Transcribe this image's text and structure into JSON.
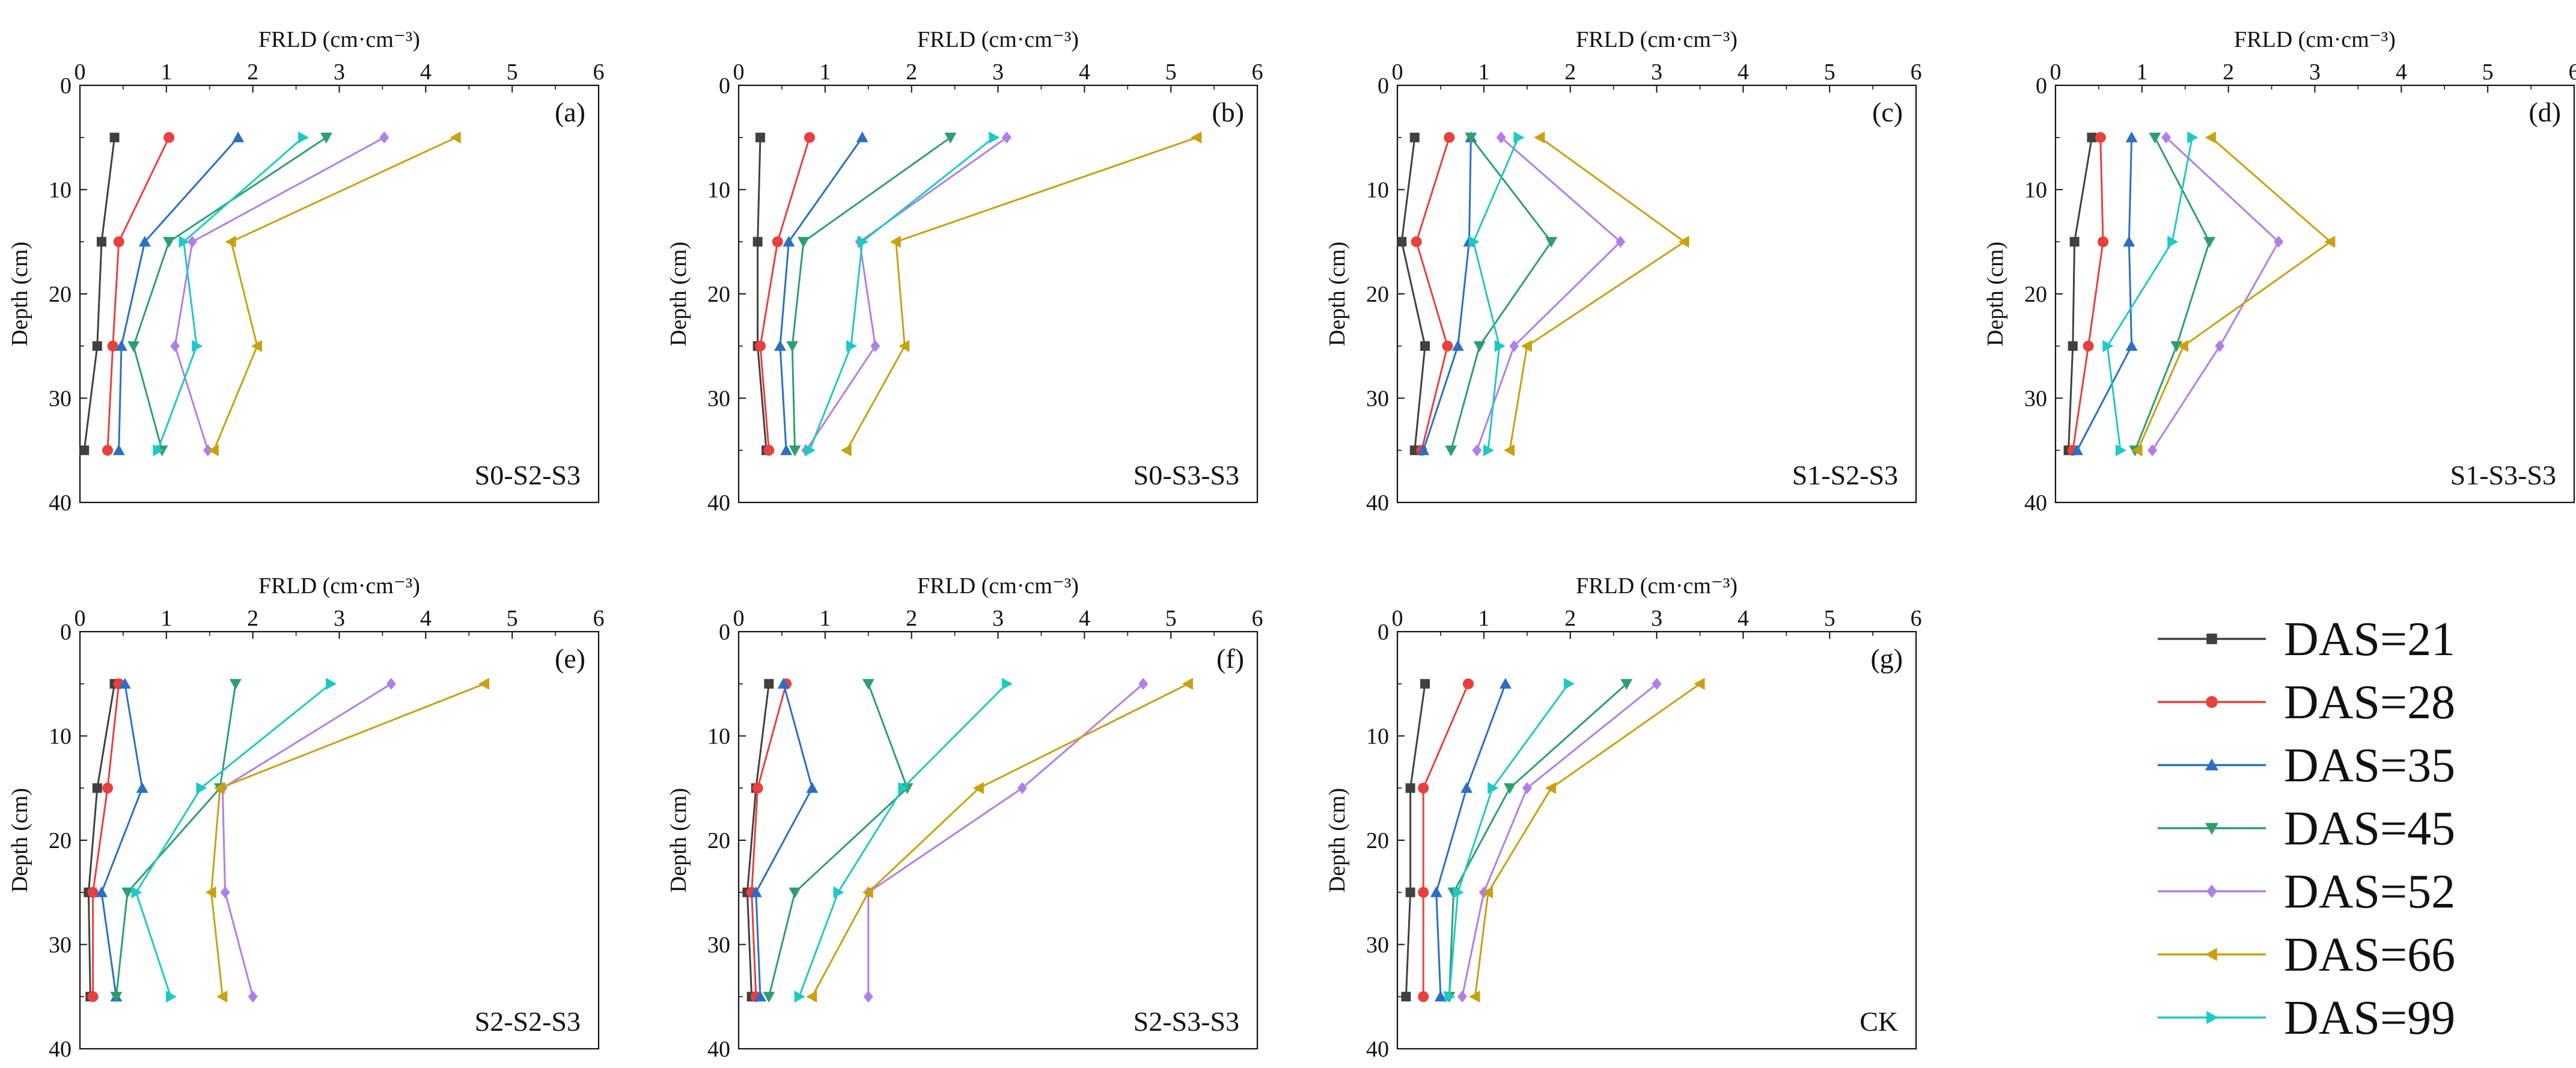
{
  "chart_data": {
    "type": "line",
    "orientation": "depth-profile",
    "xlabel": "FRLD (cm·cm⁻³)",
    "ylabel": "Depth (cm)",
    "xlim": [
      0,
      6
    ],
    "ylim": [
      0,
      40
    ],
    "xticks": [
      0,
      1,
      2,
      3,
      4,
      5,
      6
    ],
    "yticks": [
      0,
      10,
      20,
      30,
      40
    ],
    "depths": [
      5,
      15,
      25,
      35
    ],
    "series": [
      {
        "name": "DAS=21",
        "color": "#404040",
        "marker": "square"
      },
      {
        "name": "DAS=28",
        "color": "#e8403c",
        "marker": "circle"
      },
      {
        "name": "DAS=35",
        "color": "#2a6fc4",
        "marker": "triangle-up"
      },
      {
        "name": "DAS=45",
        "color": "#2e9e6e",
        "marker": "triangle-down"
      },
      {
        "name": "DAS=52",
        "color": "#b07ee8",
        "marker": "diamond"
      },
      {
        "name": "DAS=66",
        "color": "#c9a010",
        "marker": "triangle-left"
      },
      {
        "name": "DAS=99",
        "color": "#1ec9c4",
        "marker": "triangle-right"
      }
    ],
    "panels": [
      {
        "letter": "(a)",
        "treatment": "S0-S2-S3",
        "values": [
          [
            0.4,
            0.25,
            0.2,
            0.05
          ],
          [
            1.03,
            0.45,
            0.38,
            0.32
          ],
          [
            1.83,
            0.75,
            0.48,
            0.45
          ],
          [
            2.85,
            1.03,
            0.62,
            0.95
          ],
          [
            3.52,
            1.3,
            1.1,
            1.48
          ],
          [
            4.35,
            1.75,
            2.05,
            1.55
          ],
          [
            2.58,
            1.2,
            1.35,
            0.9
          ]
        ]
      },
      {
        "letter": "(b)",
        "treatment": "S0-S3-S3",
        "values": [
          [
            0.25,
            0.22,
            0.22,
            0.32
          ],
          [
            0.82,
            0.45,
            0.25,
            0.35
          ],
          [
            1.43,
            0.58,
            0.48,
            0.55
          ],
          [
            2.45,
            0.75,
            0.62,
            0.65
          ],
          [
            3.1,
            1.4,
            1.58,
            0.78
          ],
          [
            5.3,
            1.82,
            1.92,
            1.25
          ],
          [
            2.95,
            1.43,
            1.3,
            0.82
          ]
        ]
      },
      {
        "letter": "(c)",
        "treatment": "S1-S2-S3",
        "values": [
          [
            0.2,
            0.05,
            0.32,
            0.2
          ],
          [
            0.6,
            0.22,
            0.58,
            0.28
          ],
          [
            0.85,
            0.83,
            0.7,
            0.3
          ],
          [
            0.85,
            1.78,
            0.95,
            0.62
          ],
          [
            1.2,
            2.58,
            1.35,
            0.92
          ],
          [
            1.65,
            3.32,
            1.5,
            1.3
          ],
          [
            1.4,
            0.88,
            1.18,
            1.05
          ]
        ]
      },
      {
        "letter": "(d)",
        "treatment": "S1-S3-S3",
        "values": [
          [
            0.42,
            0.22,
            0.2,
            0.15
          ],
          [
            0.52,
            0.55,
            0.38,
            0.2
          ],
          [
            0.88,
            0.85,
            0.88,
            0.25
          ],
          [
            1.15,
            1.78,
            1.4,
            0.92
          ],
          [
            1.28,
            2.58,
            1.9,
            1.12
          ],
          [
            1.8,
            3.18,
            1.48,
            0.95
          ],
          [
            1.58,
            1.35,
            0.6,
            0.75
          ]
        ]
      },
      {
        "letter": "(e)",
        "treatment": "S2-S2-S3",
        "values": [
          [
            0.4,
            0.2,
            0.1,
            0.12
          ],
          [
            0.45,
            0.32,
            0.15,
            0.15
          ],
          [
            0.52,
            0.72,
            0.25,
            0.42
          ],
          [
            1.8,
            1.62,
            0.55,
            0.42
          ],
          [
            3.6,
            1.65,
            1.68,
            2.0
          ],
          [
            4.68,
            1.62,
            1.52,
            1.65
          ],
          [
            2.9,
            1.4,
            0.65,
            1.05
          ]
        ]
      },
      {
        "letter": "(f)",
        "treatment": "S2-S3-S3",
        "values": [
          [
            0.35,
            0.2,
            0.1,
            0.15
          ],
          [
            0.55,
            0.22,
            0.15,
            0.2
          ],
          [
            0.52,
            0.85,
            0.2,
            0.25
          ],
          [
            1.5,
            1.95,
            0.65,
            0.35
          ],
          [
            4.68,
            3.28,
            1.5,
            1.5
          ],
          [
            5.2,
            2.78,
            1.5,
            0.85
          ],
          [
            3.1,
            1.9,
            1.15,
            0.7
          ]
        ]
      },
      {
        "letter": "(g)",
        "treatment": "CK",
        "values": [
          [
            0.32,
            0.15,
            0.15,
            0.1
          ],
          [
            0.82,
            0.3,
            0.3,
            0.3
          ],
          [
            1.25,
            0.8,
            0.45,
            0.5
          ],
          [
            2.65,
            1.3,
            0.65,
            0.6
          ],
          [
            3.0,
            1.5,
            1.0,
            0.75
          ],
          [
            3.5,
            1.78,
            1.05,
            0.9
          ],
          [
            1.98,
            1.1,
            0.7,
            0.6
          ]
        ]
      }
    ]
  }
}
